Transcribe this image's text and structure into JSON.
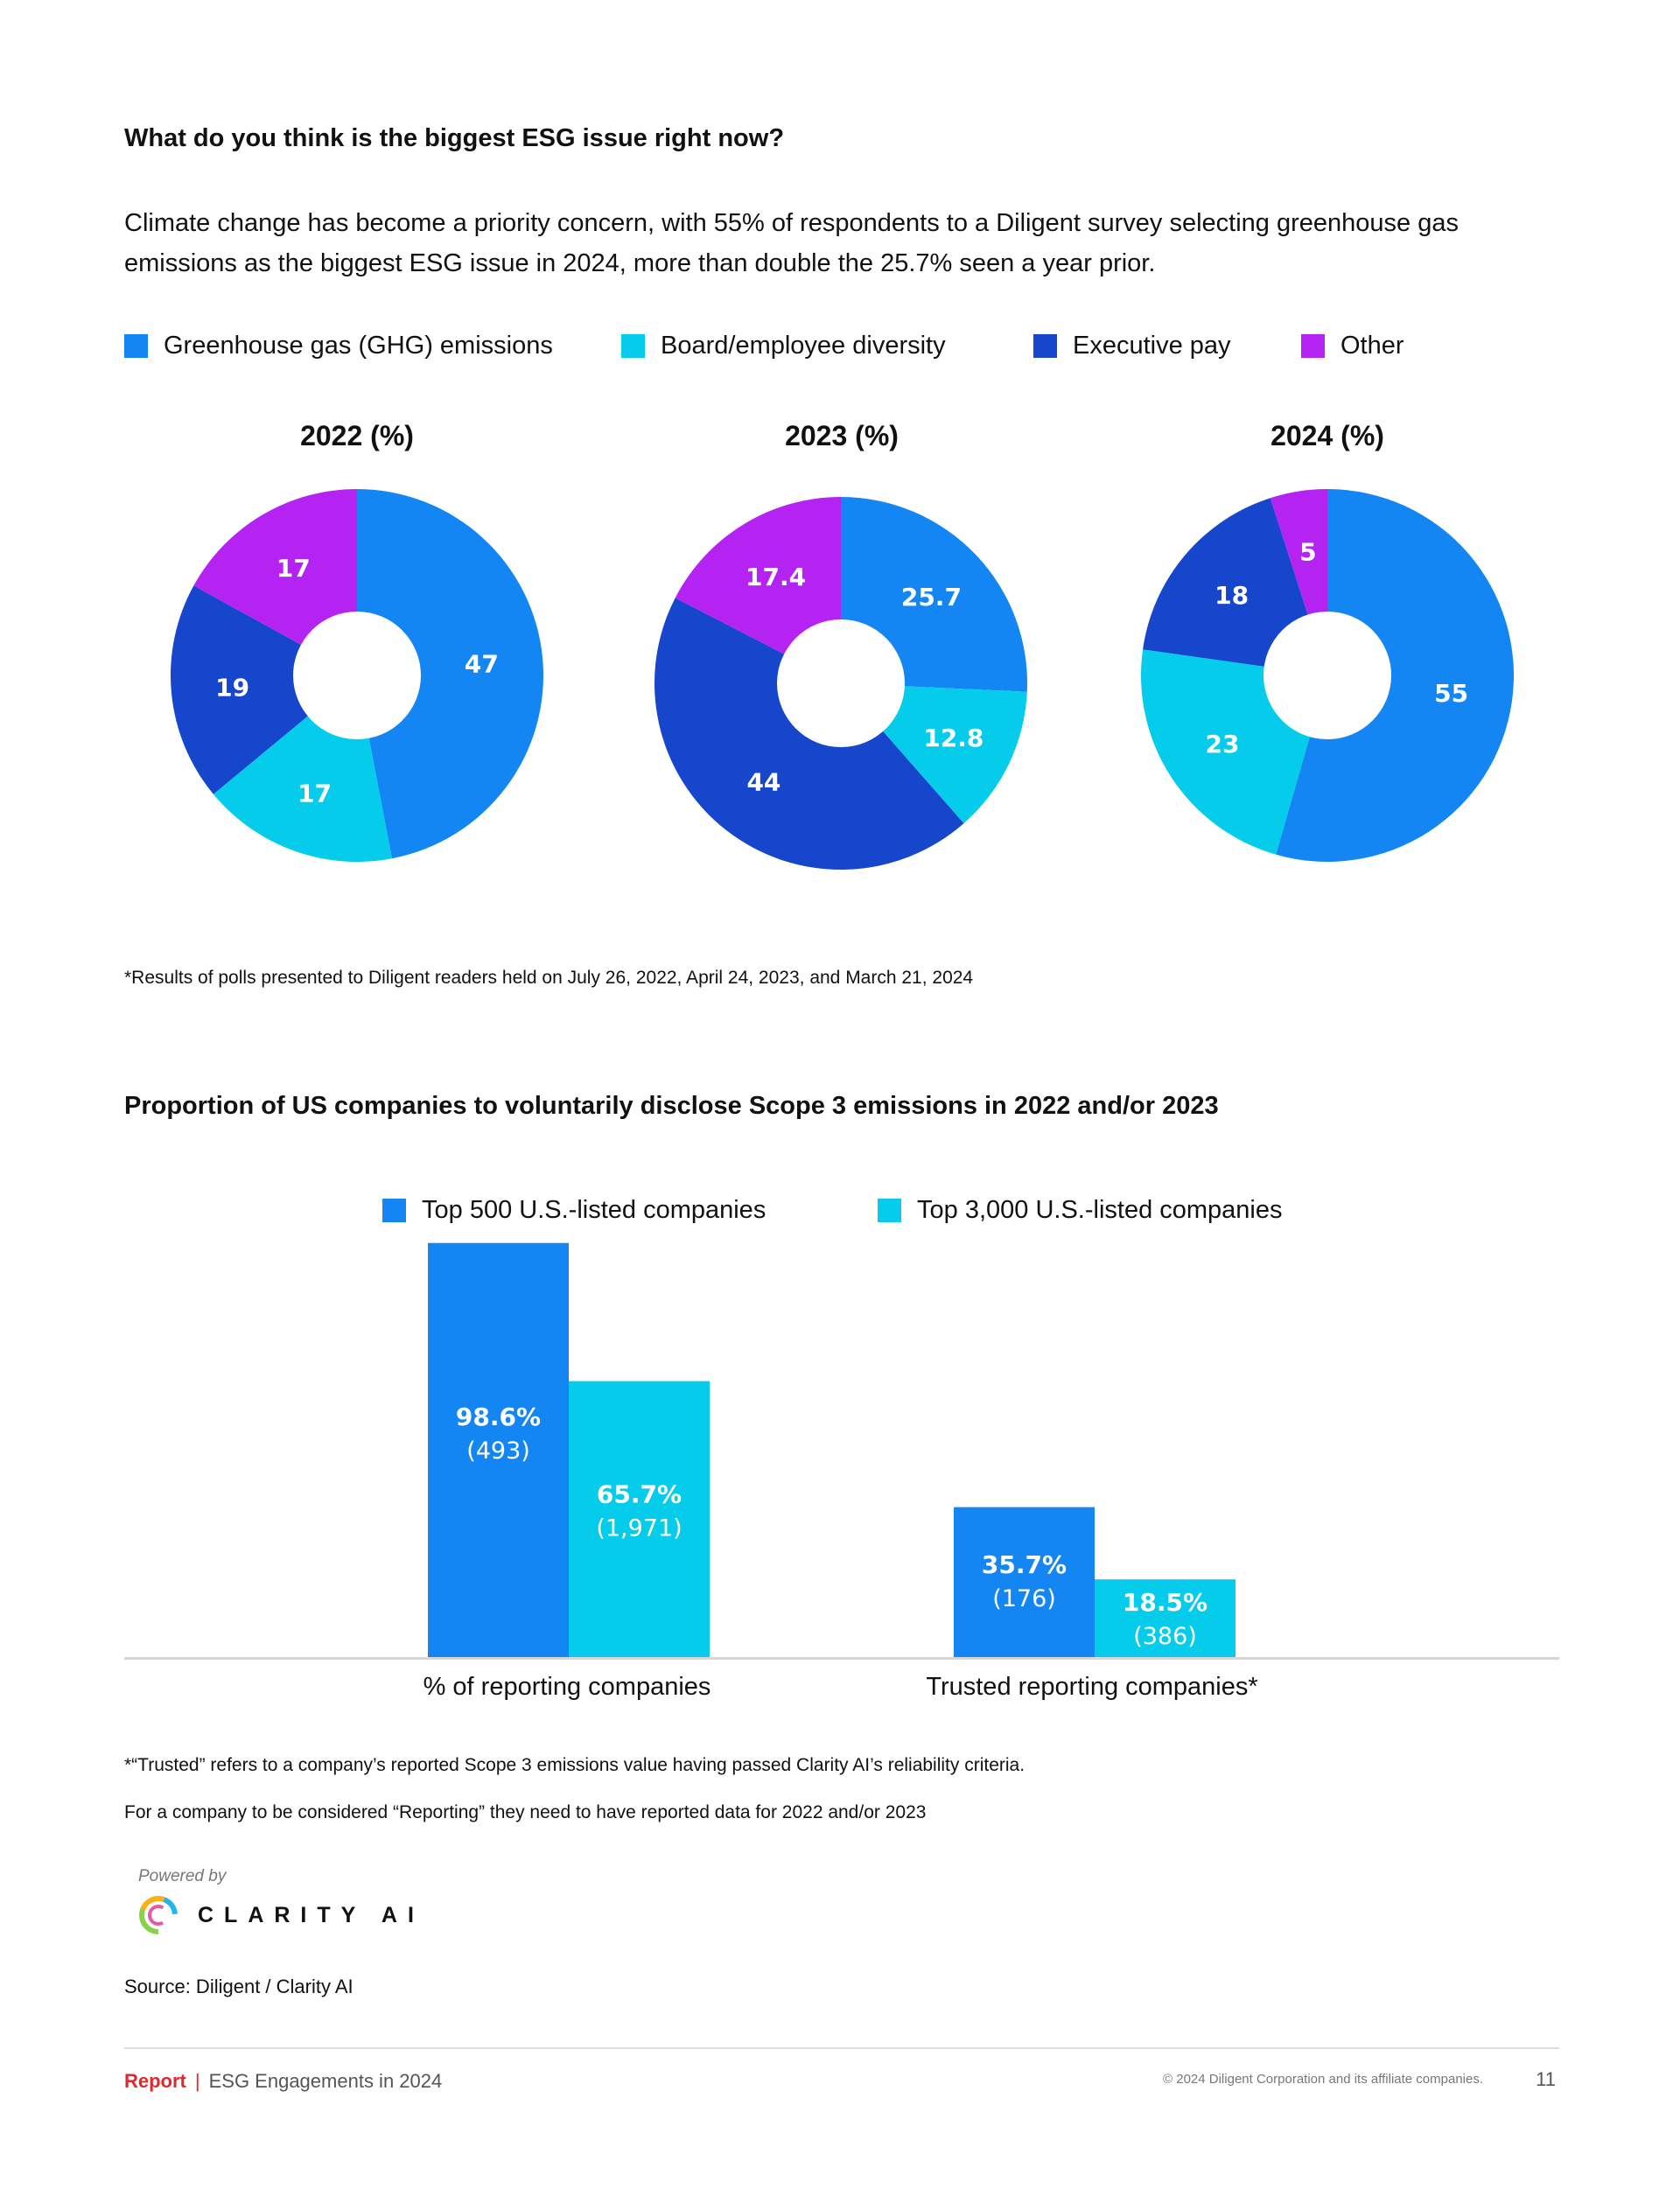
{
  "section1": {
    "title": "What do you think is the biggest ESG issue right now?",
    "intro": "Climate change has become a priority concern, with 55% of respondents to a Diligent survey selecting greenhouse gas emissions as the biggest ESG issue in 2024, more than double the 25.7% seen a year prior.",
    "footnote": "*Results of polls presented to Diligent readers held on July 26, 2022, April 24, 2023, and March 21, 2024"
  },
  "section2": {
    "title": "Proportion of US companies to voluntarily disclose Scope 3 emissions in 2022 and/or 2023",
    "note1": "*“Trusted” refers to a company’s reported Scope 3 emissions value having passed Clarity AI’s reliability criteria.",
    "note2": "For a company to be considered “Reporting” they need to have reported data for 2022 and/or 2023"
  },
  "branding": {
    "powered_by": "Powered by",
    "logo_text": "CLARITY AI",
    "source": "Source: Diligent / Clarity AI"
  },
  "footer": {
    "report": "Report",
    "separator": "|",
    "doc_title": "ESG Engagements in 2024",
    "copyright": "© 2024 Diligent Corporation and its affiliate companies.",
    "page_number": "11"
  },
  "colors": {
    "ghg": "#1486f3",
    "diversity": "#05ccea",
    "exec_pay": "#1646cc",
    "other": "#b523f3",
    "top500": "#1486f3",
    "top3000": "#05ccea"
  },
  "chart_data": [
    {
      "type": "pie",
      "legend": [
        "Greenhouse gas (GHG) emissions",
        "Board/employee diversity",
        "Executive pay",
        "Other"
      ],
      "charts": [
        {
          "title": "2022 (%)",
          "values": [
            47,
            17,
            19,
            17
          ],
          "labels": [
            "47",
            "17",
            "19",
            "17"
          ]
        },
        {
          "title": "2023 (%)",
          "values": [
            25.7,
            12.8,
            44,
            17.4
          ],
          "labels": [
            "25.7",
            "12.8",
            "44",
            "17.4"
          ]
        },
        {
          "title": "2024 (%)",
          "values": [
            55,
            23,
            18,
            5
          ],
          "labels": [
            "55",
            "23",
            "18",
            "5"
          ]
        }
      ]
    },
    {
      "type": "bar",
      "categories": [
        "% of reporting companies",
        "Trusted reporting companies*"
      ],
      "series": [
        {
          "name": "Top 500 U.S.-listed companies",
          "values": [
            98.6,
            35.7
          ],
          "counts": [
            "(493)",
            "(176)"
          ],
          "labels": [
            "98.6%",
            "35.7%"
          ]
        },
        {
          "name": "Top 3,000 U.S.-listed companies",
          "values": [
            65.7,
            18.5
          ],
          "counts": [
            "(1,971)",
            "(386)"
          ],
          "labels": [
            "65.7%",
            "18.5%"
          ]
        }
      ],
      "ylim": [
        0,
        100
      ]
    }
  ]
}
